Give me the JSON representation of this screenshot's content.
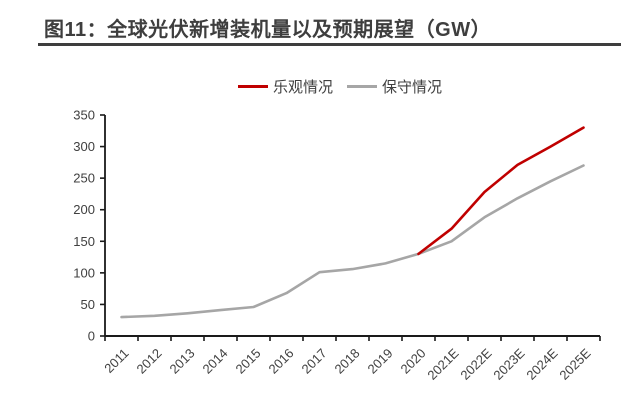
{
  "header": {
    "title": "图11：全球光伏新增装机量以及预期展望（GW）"
  },
  "legend": {
    "items": [
      {
        "label": "乐观情况",
        "color": "#c00000"
      },
      {
        "label": "保守情况",
        "color": "#a6a6a6"
      }
    ]
  },
  "colors": {
    "title_text": "#3e3e3e",
    "title_underline": "#3e3e3e",
    "axis": "#1a1a1a",
    "tick_text": "#404040",
    "optimistic_line": "#c00000",
    "conservative_line": "#a6a6a6",
    "background": "#ffffff"
  },
  "chart_data": {
    "type": "line",
    "title": "图11：全球光伏新增装机量以及预期展望（GW）",
    "unit": "GW",
    "categories": [
      "2011",
      "2012",
      "2013",
      "2014",
      "2015",
      "2016",
      "2017",
      "2018",
      "2019",
      "2020",
      "2021E",
      "2022E",
      "2023E",
      "2024E",
      "2025E"
    ],
    "series": [
      {
        "name": "乐观情况",
        "color": "#c00000",
        "values": [
          null,
          null,
          null,
          null,
          null,
          null,
          null,
          null,
          null,
          130,
          170,
          228,
          271,
          300,
          330
        ]
      },
      {
        "name": "保守情况",
        "color": "#a6a6a6",
        "values": [
          30,
          32,
          36,
          41,
          46,
          68,
          101,
          106,
          115,
          130,
          150,
          188,
          218,
          245,
          270
        ]
      }
    ],
    "xlabel": "",
    "ylabel": "",
    "ylim": [
      0,
      350
    ],
    "ytick_step": 50,
    "ytick_labels": [
      "0",
      "50",
      "100",
      "150",
      "200",
      "250",
      "300",
      "350"
    ],
    "grid": false,
    "legend_position": "top",
    "x_label_rotation": -45
  }
}
